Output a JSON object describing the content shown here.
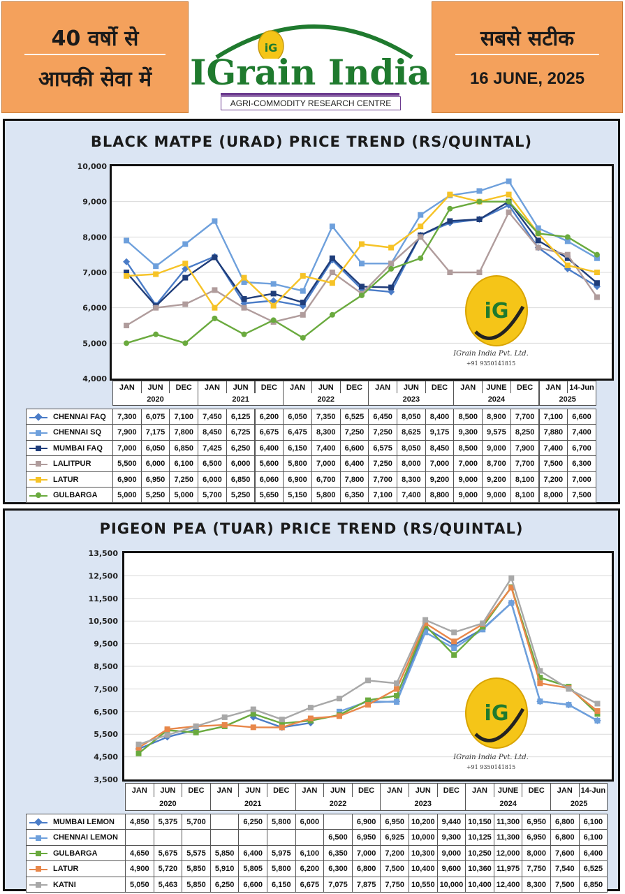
{
  "header": {
    "left_line1": "40 वर्षो से",
    "left_line2": "आपकी सेवा में",
    "brand": "IGrain India",
    "tagline": "AGRI-COMMODITY RESEARCH CENTRE",
    "logo_letters": "iG",
    "right_line1": "सबसे सटीक",
    "right_date": "16 JUNE, 2025"
  },
  "watermark": {
    "company": "IGrain India Pvt. Ltd.",
    "phone": "+91 9350141815",
    "letters": "iG"
  },
  "colors": {
    "header_bg": "#f4a15c",
    "panel_bg": "#dbe5f3",
    "brand_green": "#1f7a2e",
    "logo_gold": "#f5c518"
  },
  "chart_data": [
    {
      "type": "line",
      "title": "BLACK MATPE (URAD) PRICE TREND (RS/QUINTAL)",
      "ylim": [
        4000,
        10000
      ],
      "yticks": [
        "4,000",
        "5,000",
        "6,000",
        "7,000",
        "8,000",
        "9,000",
        "10,000"
      ],
      "categories": [
        "JAN",
        "JUN",
        "DEC",
        "JAN",
        "JUN",
        "DEC",
        "JAN",
        "JUN",
        "DEC",
        "JAN",
        "JUN",
        "DEC",
        "JAN",
        "JUNE",
        "DEC",
        "JAN",
        "14-Jun"
      ],
      "years": [
        {
          "label": "2020",
          "span": 3
        },
        {
          "label": "2021",
          "span": 3
        },
        {
          "label": "2022",
          "span": 3
        },
        {
          "label": "2023",
          "span": 3
        },
        {
          "label": "2024",
          "span": 3
        },
        {
          "label": "2025",
          "span": 2
        }
      ],
      "series": [
        {
          "name": "CHENNAI FAQ",
          "color": "#4a7cc7",
          "marker": "diamond",
          "values": [
            7300,
            6075,
            7100,
            7450,
            6125,
            6200,
            6050,
            7350,
            6525,
            6450,
            8050,
            8400,
            8500,
            8900,
            7700,
            7100,
            6600
          ],
          "labels": [
            "7,300",
            "6,075",
            "7,100",
            "7,450",
            "6,125",
            "6,200",
            "6,050",
            "7,350",
            "6,525",
            "6,450",
            "8,050",
            "8,400",
            "8,500",
            "8,900",
            "7,700",
            "7,100",
            "6,600"
          ]
        },
        {
          "name": "CHENNAI SQ",
          "color": "#6ea0dc",
          "marker": "square",
          "values": [
            7900,
            7175,
            7800,
            8450,
            6725,
            6675,
            6475,
            8300,
            7250,
            7250,
            8625,
            9175,
            9300,
            9575,
            8250,
            7880,
            7400
          ],
          "labels": [
            "7,900",
            "7,175",
            "7,800",
            "8,450",
            "6,725",
            "6,675",
            "6,475",
            "8,300",
            "7,250",
            "7,250",
            "8,625",
            "9,175",
            "9,300",
            "9,575",
            "8,250",
            "7,880",
            "7,400"
          ]
        },
        {
          "name": "MUMBAI FAQ",
          "color": "#1f3d7a",
          "marker": "square",
          "values": [
            7000,
            6050,
            6850,
            7425,
            6250,
            6400,
            6150,
            7400,
            6600,
            6575,
            8050,
            8450,
            8500,
            9000,
            7900,
            7400,
            6700
          ],
          "labels": [
            "7,000",
            "6,050",
            "6,850",
            "7,425",
            "6,250",
            "6,400",
            "6,150",
            "7,400",
            "6,600",
            "6,575",
            "8,050",
            "8,450",
            "8,500",
            "9,000",
            "7,900",
            "7,400",
            "6,700"
          ]
        },
        {
          "name": "LALITPUR",
          "color": "#b09c9c",
          "marker": "square",
          "values": [
            5500,
            6000,
            6100,
            6500,
            6000,
            5600,
            5800,
            7000,
            6400,
            7250,
            8000,
            7000,
            7000,
            8700,
            7700,
            7500,
            6300
          ],
          "labels": [
            "5,500",
            "6,000",
            "6,100",
            "6,500",
            "6,000",
            "5,600",
            "5,800",
            "7,000",
            "6,400",
            "7,250",
            "8,000",
            "7,000",
            "7,000",
            "8,700",
            "7,700",
            "7,500",
            "6,300"
          ]
        },
        {
          "name": "LATUR",
          "color": "#f6c327",
          "marker": "square",
          "values": [
            6900,
            6950,
            7250,
            6000,
            6850,
            6060,
            6900,
            6700,
            7800,
            7700,
            8300,
            9200,
            9000,
            9200,
            8100,
            7200,
            7000
          ],
          "labels": [
            "6,900",
            "6,950",
            "7,250",
            "6,000",
            "6,850",
            "6,060",
            "6,900",
            "6,700",
            "7,800",
            "7,700",
            "8,300",
            "9,200",
            "9,000",
            "9,200",
            "8,100",
            "7,200",
            "7,000"
          ]
        },
        {
          "name": "GULBARGA",
          "color": "#6aaa3e",
          "marker": "circle",
          "values": [
            5000,
            5250,
            5000,
            5700,
            5250,
            5650,
            5150,
            5800,
            6350,
            7100,
            7400,
            8800,
            9000,
            9000,
            8100,
            8000,
            7500
          ],
          "labels": [
            "5,000",
            "5,250",
            "5,000",
            "5,700",
            "5,250",
            "5,650",
            "5,150",
            "5,800",
            "6,350",
            "7,100",
            "7,400",
            "8,800",
            "9,000",
            "9,000",
            "8,100",
            "8,000",
            "7,500"
          ]
        }
      ]
    },
    {
      "type": "line",
      "title": "PIGEON PEA (TUAR) PRICE TREND (RS/QUINTAL)",
      "ylim": [
        3500,
        13500
      ],
      "yticks": [
        "3,500",
        "4,500",
        "5,500",
        "6,500",
        "7,500",
        "8,500",
        "9,500",
        "10,500",
        "11,500",
        "12,500",
        "13,500"
      ],
      "categories": [
        "JAN",
        "JUN",
        "DEC",
        "JAN",
        "JUN",
        "DEC",
        "JAN",
        "JUN",
        "DEC",
        "JAN",
        "JUN",
        "DEC",
        "JAN",
        "JUNE",
        "DEC",
        "JAN",
        "14-Jun"
      ],
      "years": [
        {
          "label": "2020",
          "span": 3
        },
        {
          "label": "2021",
          "span": 3
        },
        {
          "label": "2022",
          "span": 3
        },
        {
          "label": "2023",
          "span": 3
        },
        {
          "label": "2024",
          "span": 3
        },
        {
          "label": "2025",
          "span": 2
        }
      ],
      "series": [
        {
          "name": "MUMBAI LEMON",
          "color": "#4a7cc7",
          "marker": "diamond",
          "values": [
            4850,
            5375,
            5700,
            null,
            6250,
            5800,
            6000,
            null,
            6900,
            6950,
            10200,
            9440,
            10150,
            11300,
            6950,
            6800,
            6100
          ],
          "labels": [
            "4,850",
            "5,375",
            "5,700",
            "",
            "6,250",
            "5,800",
            "6,000",
            "",
            "6,900",
            "6,950",
            "10,200",
            "9,440",
            "10,150",
            "11,300",
            "6,950",
            "6,800",
            "6,100"
          ]
        },
        {
          "name": "CHENNAI LEMON",
          "color": "#6ea0dc",
          "marker": "square",
          "values": [
            null,
            null,
            null,
            null,
            null,
            null,
            null,
            6500,
            6950,
            6925,
            10000,
            9300,
            10125,
            11300,
            6950,
            6800,
            6100
          ],
          "labels": [
            "",
            "",
            "",
            "",
            "",
            "",
            "",
            "6,500",
            "6,950",
            "6,925",
            "10,000",
            "9,300",
            "10,125",
            "11,300",
            "6,950",
            "6,800",
            "6,100"
          ]
        },
        {
          "name": "GULBARGA",
          "color": "#6aaa3e",
          "marker": "square",
          "values": [
            4650,
            5675,
            5575,
            5850,
            6400,
            5975,
            6100,
            6350,
            7000,
            7200,
            10300,
            9000,
            10250,
            12000,
            8000,
            7600,
            6400
          ],
          "labels": [
            "4,650",
            "5,675",
            "5,575",
            "5,850",
            "6,400",
            "5,975",
            "6,100",
            "6,350",
            "7,000",
            "7,200",
            "10,300",
            "9,000",
            "10,250",
            "12,000",
            "8,000",
            "7,600",
            "6,400"
          ]
        },
        {
          "name": "LATUR",
          "color": "#e8874a",
          "marker": "square",
          "values": [
            4900,
            5720,
            5850,
            5910,
            5805,
            5800,
            6200,
            6300,
            6800,
            7500,
            10400,
            9600,
            10360,
            11975,
            7750,
            7540,
            6525
          ],
          "labels": [
            "4,900",
            "5,720",
            "5,850",
            "5,910",
            "5,805",
            "5,800",
            "6,200",
            "6,300",
            "6,800",
            "7,500",
            "10,400",
            "9,600",
            "10,360",
            "11,975",
            "7,750",
            "7,540",
            "6,525"
          ]
        },
        {
          "name": "KATNI",
          "color": "#a8a8a8",
          "marker": "square",
          "values": [
            5050,
            5463,
            5850,
            6250,
            6600,
            6150,
            6675,
            7075,
            7875,
            7750,
            10550,
            10000,
            10400,
            12400,
            8300,
            7500,
            6850
          ],
          "labels": [
            "5,050",
            "5,463",
            "5,850",
            "6,250",
            "6,600",
            "6,150",
            "6,675",
            "7,075",
            "7,875",
            "7,750",
            "10,550",
            "10,000",
            "10,400",
            "12,400",
            "8,300",
            "7,500",
            "6,850"
          ]
        }
      ]
    }
  ]
}
